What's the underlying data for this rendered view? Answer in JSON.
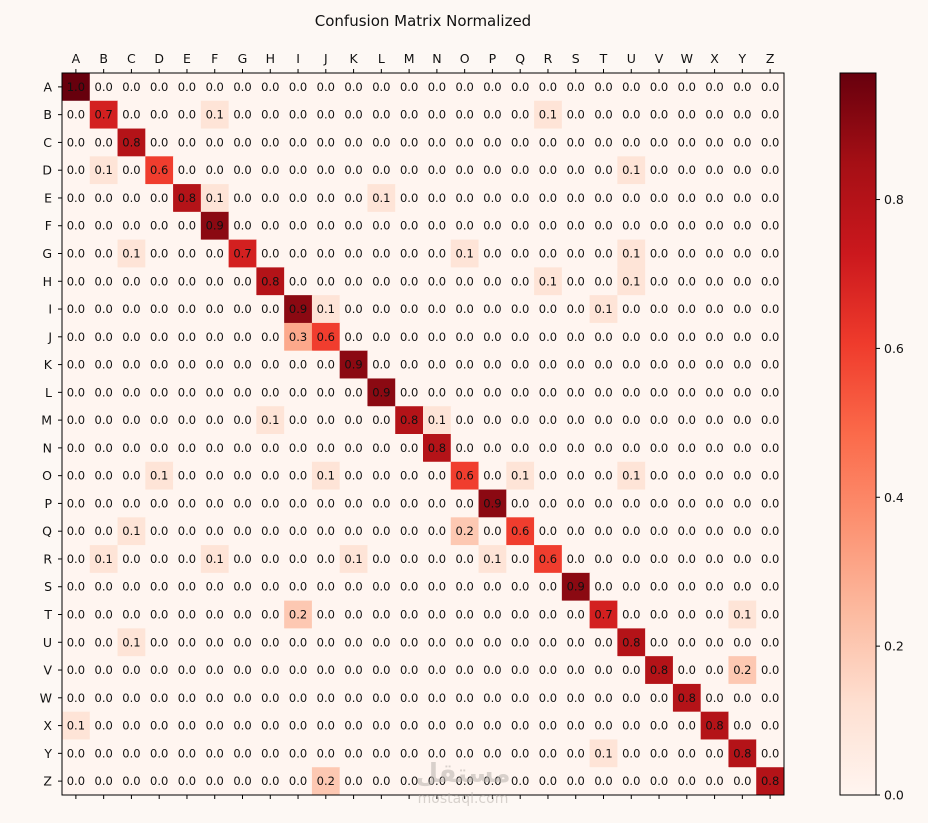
{
  "chart_data": {
    "type": "heatmap",
    "title": "Confusion Matrix Normalized",
    "labels": [
      "A",
      "B",
      "C",
      "D",
      "E",
      "F",
      "G",
      "H",
      "I",
      "J",
      "K",
      "L",
      "M",
      "N",
      "O",
      "P",
      "Q",
      "R",
      "S",
      "T",
      "U",
      "V",
      "W",
      "X",
      "Y",
      "Z"
    ],
    "values": [
      [
        1.0,
        0.0,
        0.0,
        0.0,
        0.0,
        0.0,
        0.0,
        0.0,
        0.0,
        0.0,
        0.0,
        0.0,
        0.0,
        0.0,
        0.0,
        0.0,
        0.0,
        0.0,
        0.0,
        0.0,
        0.0,
        0.0,
        0.0,
        0.0,
        0.0,
        0.0
      ],
      [
        0.0,
        0.7,
        0.0,
        0.0,
        0.0,
        0.1,
        0.0,
        0.0,
        0.0,
        0.0,
        0.0,
        0.0,
        0.0,
        0.0,
        0.0,
        0.0,
        0.0,
        0.1,
        0.0,
        0.0,
        0.0,
        0.0,
        0.0,
        0.0,
        0.0,
        0.0
      ],
      [
        0.0,
        0.0,
        0.8,
        0.0,
        0.0,
        0.0,
        0.0,
        0.0,
        0.0,
        0.0,
        0.0,
        0.0,
        0.0,
        0.0,
        0.0,
        0.0,
        0.0,
        0.0,
        0.0,
        0.0,
        0.0,
        0.0,
        0.0,
        0.0,
        0.0,
        0.0
      ],
      [
        0.0,
        0.1,
        0.0,
        0.6,
        0.0,
        0.0,
        0.0,
        0.0,
        0.0,
        0.0,
        0.0,
        0.0,
        0.0,
        0.0,
        0.0,
        0.0,
        0.0,
        0.0,
        0.0,
        0.0,
        0.1,
        0.0,
        0.0,
        0.0,
        0.0,
        0.0
      ],
      [
        0.0,
        0.0,
        0.0,
        0.0,
        0.8,
        0.1,
        0.0,
        0.0,
        0.0,
        0.0,
        0.0,
        0.1,
        0.0,
        0.0,
        0.0,
        0.0,
        0.0,
        0.0,
        0.0,
        0.0,
        0.0,
        0.0,
        0.0,
        0.0,
        0.0,
        0.0
      ],
      [
        0.0,
        0.0,
        0.0,
        0.0,
        0.0,
        0.9,
        0.0,
        0.0,
        0.0,
        0.0,
        0.0,
        0.0,
        0.0,
        0.0,
        0.0,
        0.0,
        0.0,
        0.0,
        0.0,
        0.0,
        0.0,
        0.0,
        0.0,
        0.0,
        0.0,
        0.0
      ],
      [
        0.0,
        0.0,
        0.1,
        0.0,
        0.0,
        0.0,
        0.7,
        0.0,
        0.0,
        0.0,
        0.0,
        0.0,
        0.0,
        0.0,
        0.1,
        0.0,
        0.0,
        0.0,
        0.0,
        0.0,
        0.1,
        0.0,
        0.0,
        0.0,
        0.0,
        0.0
      ],
      [
        0.0,
        0.0,
        0.0,
        0.0,
        0.0,
        0.0,
        0.0,
        0.8,
        0.0,
        0.0,
        0.0,
        0.0,
        0.0,
        0.0,
        0.0,
        0.0,
        0.0,
        0.1,
        0.0,
        0.0,
        0.1,
        0.0,
        0.0,
        0.0,
        0.0,
        0.0
      ],
      [
        0.0,
        0.0,
        0.0,
        0.0,
        0.0,
        0.0,
        0.0,
        0.0,
        0.9,
        0.1,
        0.0,
        0.0,
        0.0,
        0.0,
        0.0,
        0.0,
        0.0,
        0.0,
        0.0,
        0.1,
        0.0,
        0.0,
        0.0,
        0.0,
        0.0,
        0.0
      ],
      [
        0.0,
        0.0,
        0.0,
        0.0,
        0.0,
        0.0,
        0.0,
        0.0,
        0.3,
        0.6,
        0.0,
        0.0,
        0.0,
        0.0,
        0.0,
        0.0,
        0.0,
        0.0,
        0.0,
        0.0,
        0.0,
        0.0,
        0.0,
        0.0,
        0.0,
        0.0
      ],
      [
        0.0,
        0.0,
        0.0,
        0.0,
        0.0,
        0.0,
        0.0,
        0.0,
        0.0,
        0.0,
        0.9,
        0.0,
        0.0,
        0.0,
        0.0,
        0.0,
        0.0,
        0.0,
        0.0,
        0.0,
        0.0,
        0.0,
        0.0,
        0.0,
        0.0,
        0.0
      ],
      [
        0.0,
        0.0,
        0.0,
        0.0,
        0.0,
        0.0,
        0.0,
        0.0,
        0.0,
        0.0,
        0.0,
        0.9,
        0.0,
        0.0,
        0.0,
        0.0,
        0.0,
        0.0,
        0.0,
        0.0,
        0.0,
        0.0,
        0.0,
        0.0,
        0.0,
        0.0
      ],
      [
        0.0,
        0.0,
        0.0,
        0.0,
        0.0,
        0.0,
        0.0,
        0.1,
        0.0,
        0.0,
        0.0,
        0.0,
        0.8,
        0.1,
        0.0,
        0.0,
        0.0,
        0.0,
        0.0,
        0.0,
        0.0,
        0.0,
        0.0,
        0.0,
        0.0,
        0.0
      ],
      [
        0.0,
        0.0,
        0.0,
        0.0,
        0.0,
        0.0,
        0.0,
        0.0,
        0.0,
        0.0,
        0.0,
        0.0,
        0.0,
        0.8,
        0.0,
        0.0,
        0.0,
        0.0,
        0.0,
        0.0,
        0.0,
        0.0,
        0.0,
        0.0,
        0.0,
        0.0
      ],
      [
        0.0,
        0.0,
        0.0,
        0.1,
        0.0,
        0.0,
        0.0,
        0.0,
        0.0,
        0.1,
        0.0,
        0.0,
        0.0,
        0.0,
        0.6,
        0.0,
        0.1,
        0.0,
        0.0,
        0.0,
        0.1,
        0.0,
        0.0,
        0.0,
        0.0,
        0.0
      ],
      [
        0.0,
        0.0,
        0.0,
        0.0,
        0.0,
        0.0,
        0.0,
        0.0,
        0.0,
        0.0,
        0.0,
        0.0,
        0.0,
        0.0,
        0.0,
        0.9,
        0.0,
        0.0,
        0.0,
        0.0,
        0.0,
        0.0,
        0.0,
        0.0,
        0.0,
        0.0
      ],
      [
        0.0,
        0.0,
        0.1,
        0.0,
        0.0,
        0.0,
        0.0,
        0.0,
        0.0,
        0.0,
        0.0,
        0.0,
        0.0,
        0.0,
        0.2,
        0.0,
        0.6,
        0.0,
        0.0,
        0.0,
        0.0,
        0.0,
        0.0,
        0.0,
        0.0,
        0.0
      ],
      [
        0.0,
        0.1,
        0.0,
        0.0,
        0.0,
        0.1,
        0.0,
        0.0,
        0.0,
        0.0,
        0.1,
        0.0,
        0.0,
        0.0,
        0.0,
        0.1,
        0.0,
        0.6,
        0.0,
        0.0,
        0.0,
        0.0,
        0.0,
        0.0,
        0.0,
        0.0
      ],
      [
        0.0,
        0.0,
        0.0,
        0.0,
        0.0,
        0.0,
        0.0,
        0.0,
        0.0,
        0.0,
        0.0,
        0.0,
        0.0,
        0.0,
        0.0,
        0.0,
        0.0,
        0.0,
        0.9,
        0.0,
        0.0,
        0.0,
        0.0,
        0.0,
        0.0,
        0.0
      ],
      [
        0.0,
        0.0,
        0.0,
        0.0,
        0.0,
        0.0,
        0.0,
        0.0,
        0.2,
        0.0,
        0.0,
        0.0,
        0.0,
        0.0,
        0.0,
        0.0,
        0.0,
        0.0,
        0.0,
        0.7,
        0.0,
        0.0,
        0.0,
        0.0,
        0.1,
        0.0
      ],
      [
        0.0,
        0.0,
        0.1,
        0.0,
        0.0,
        0.0,
        0.0,
        0.0,
        0.0,
        0.0,
        0.0,
        0.0,
        0.0,
        0.0,
        0.0,
        0.0,
        0.0,
        0.0,
        0.0,
        0.0,
        0.8,
        0.0,
        0.0,
        0.0,
        0.0,
        0.0
      ],
      [
        0.0,
        0.0,
        0.0,
        0.0,
        0.0,
        0.0,
        0.0,
        0.0,
        0.0,
        0.0,
        0.0,
        0.0,
        0.0,
        0.0,
        0.0,
        0.0,
        0.0,
        0.0,
        0.0,
        0.0,
        0.0,
        0.8,
        0.0,
        0.0,
        0.2,
        0.0
      ],
      [
        0.0,
        0.0,
        0.0,
        0.0,
        0.0,
        0.0,
        0.0,
        0.0,
        0.0,
        0.0,
        0.0,
        0.0,
        0.0,
        0.0,
        0.0,
        0.0,
        0.0,
        0.0,
        0.0,
        0.0,
        0.0,
        0.0,
        0.8,
        0.0,
        0.0,
        0.0
      ],
      [
        0.1,
        0.0,
        0.0,
        0.0,
        0.0,
        0.0,
        0.0,
        0.0,
        0.0,
        0.0,
        0.0,
        0.0,
        0.0,
        0.0,
        0.0,
        0.0,
        0.0,
        0.0,
        0.0,
        0.0,
        0.0,
        0.0,
        0.0,
        0.8,
        0.0,
        0.0
      ],
      [
        0.0,
        0.0,
        0.0,
        0.0,
        0.0,
        0.0,
        0.0,
        0.0,
        0.0,
        0.0,
        0.0,
        0.0,
        0.0,
        0.0,
        0.0,
        0.0,
        0.0,
        0.0,
        0.0,
        0.1,
        0.0,
        0.0,
        0.0,
        0.0,
        0.8,
        0.0
      ],
      [
        0.0,
        0.0,
        0.0,
        0.0,
        0.0,
        0.0,
        0.0,
        0.0,
        0.0,
        0.2,
        0.0,
        0.0,
        0.0,
        0.0,
        0.0,
        0.0,
        0.0,
        0.0,
        0.0,
        0.0,
        0.0,
        0.0,
        0.0,
        0.0,
        0.0,
        0.8
      ]
    ],
    "colorbar": {
      "ticks": [
        0.0,
        0.2,
        0.4,
        0.6,
        0.8
      ],
      "tick_labels": [
        "0.0",
        "0.2",
        "0.4",
        "0.6",
        "0.8"
      ],
      "range": [
        0.0,
        0.97
      ]
    },
    "colormap": [
      "#fff5f0",
      "#fee0d2",
      "#fcbba1",
      "#fc9272",
      "#fb6a4a",
      "#ef3b2c",
      "#cb181d",
      "#a50f15",
      "#67000d"
    ],
    "grid": false,
    "x_ticks_position": "top"
  },
  "watermark": {
    "text": "مستقل",
    "subtext": "mostaql.com"
  }
}
